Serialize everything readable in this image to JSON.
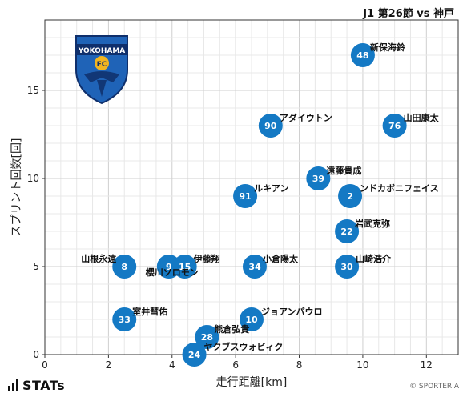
{
  "header": {
    "title": "J1 第26節 vs 神戸"
  },
  "footer": {
    "brand": "STATs",
    "copyright": "© SPORTERIA"
  },
  "logo": {
    "line1": "YOKOHAMA",
    "line2": "FC",
    "colors": {
      "primary": "#1f63b7",
      "dark": "#0f2f6b",
      "accent": "#f2b51f"
    }
  },
  "chart_data": {
    "type": "scatter",
    "title": "",
    "xlabel": "走行距離[km]",
    "ylabel": "スプリント回数[回]",
    "xlim": [
      0,
      13
    ],
    "ylim": [
      0,
      19
    ],
    "xticks": [
      0,
      2,
      4,
      6,
      8,
      10,
      12
    ],
    "yticks": [
      0,
      5,
      10,
      15
    ],
    "grid": true,
    "marker_color": "#1479c4",
    "points": [
      {
        "number": "48",
        "name": "新保海鈴",
        "x": 10.0,
        "y": 17
      },
      {
        "number": "90",
        "name": "アダイウトン",
        "x": 7.1,
        "y": 13
      },
      {
        "number": "76",
        "name": "山田康太",
        "x": 11.0,
        "y": 13
      },
      {
        "number": "39",
        "name": "遠藤貴成",
        "x": 8.6,
        "y": 10
      },
      {
        "number": "91",
        "name": "ルキアン",
        "x": 6.3,
        "y": 9
      },
      {
        "number": "2",
        "name": "ンドカボニフェイス",
        "x": 9.6,
        "y": 9
      },
      {
        "number": "22",
        "name": "岩武克弥",
        "x": 9.5,
        "y": 7
      },
      {
        "number": "8",
        "name": "山根永遠",
        "x": 2.5,
        "y": 5
      },
      {
        "number": "9",
        "name": "櫻川ソロモン",
        "x": 3.9,
        "y": 5
      },
      {
        "number": "15",
        "name": "伊藤翔",
        "x": 4.4,
        "y": 5
      },
      {
        "number": "34",
        "name": "小倉陽太",
        "x": 6.6,
        "y": 5
      },
      {
        "number": "30",
        "name": "山崎浩介",
        "x": 9.5,
        "y": 5
      },
      {
        "number": "33",
        "name": "室井彗佑",
        "x": 2.5,
        "y": 2
      },
      {
        "number": "10",
        "name": "ジョアンパウロ",
        "x": 6.5,
        "y": 2
      },
      {
        "number": "28",
        "name": "熊倉弘貴",
        "x": 5.1,
        "y": 1
      },
      {
        "number": "24",
        "name": "ヤクブスウォビィク",
        "x": 4.7,
        "y": 0
      }
    ]
  }
}
